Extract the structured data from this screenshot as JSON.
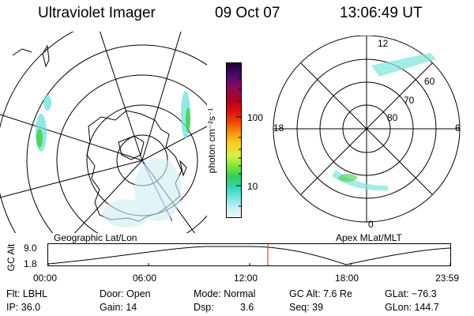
{
  "header": {
    "instrument": "Ultraviolet Imager",
    "date": "09 Oct 07",
    "time": "13:06:49 UT"
  },
  "maps": {
    "geographic_label": "Geographic Lat/Lon",
    "apex_label": "Apex MLat/MLT"
  },
  "colorbar": {
    "unit_label": "photon cm⁻²s⁻¹",
    "tick_100": "100",
    "tick_10": "10",
    "scale": "log",
    "colors": [
      "#1a0030",
      "#4a0a6e",
      "#8a0a5a",
      "#b00020",
      "#d81010",
      "#f0400a",
      "#f8900a",
      "#f8d020",
      "#d8f040",
      "#7ae83a",
      "#2ecc60",
      "#36d8b8",
      "#7ee8e8",
      "#c8f0f4",
      "#eef8fa"
    ]
  },
  "apex_polar": {
    "mlt_top": "12",
    "mlt_bottom": "0",
    "mlt_left": "18",
    "mlt_right": "6",
    "lat_60": "60",
    "lat_70": "70",
    "lat_80": "80"
  },
  "altitude_plot": {
    "ylabel": "GC Alt",
    "y_max_label": "9.0",
    "y_min_label": "1.8",
    "x_ticks": [
      "00:00",
      "06:00",
      "12:00",
      "18:00",
      "23:59"
    ],
    "marker_time": "13:06:49"
  },
  "status": {
    "flt": "Flt: LBHL",
    "ip": "IP: 36.0",
    "door": "Door: Open",
    "gain": "Gain: 14",
    "mode": "Mode: Normal",
    "dsp_label": "Dsp:",
    "dsp_value": "3.6",
    "gc_alt": "GC Alt: 7.6 Re",
    "seq": "Seq: 39",
    "glat": "GLat: −76.3",
    "glon": "GLon: 144.7"
  }
}
